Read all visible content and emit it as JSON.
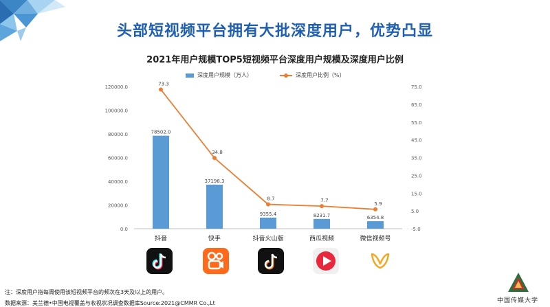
{
  "slide": {
    "headline": "头部短视频平台拥有大批深度用户，优势凸显",
    "footnote": "注：深度用户指每周使用该短视频平台的频次在3天及以上的用户。",
    "source": "数据来源：美兰德•中国电视覆盖与收视状况调查数据库Source:2021@CMMR Co.,Lt",
    "logo_text": "中国传媒大学"
  },
  "chart_data": {
    "type": "bar+line",
    "title": "2021年用户规模TOP5短视频平台深度用户规模及深度用户比例",
    "categories": [
      "抖音",
      "快手",
      "抖音火山版",
      "西瓜视频",
      "微信视频号"
    ],
    "series": [
      {
        "name": "深度用户规模（万人）",
        "type": "bar",
        "axis": "left",
        "color": "#5b9bd5",
        "values": [
          78502.0,
          37198.3,
          9355.4,
          8231.7,
          6354.8
        ],
        "labels": [
          "78502.0",
          "37198.3",
          "9355.4",
          "8231.7",
          "6354.8"
        ]
      },
      {
        "name": "深度用户比例（%）",
        "type": "line",
        "axis": "right",
        "color": "#ed7d31",
        "values": [
          73.3,
          34.8,
          8.7,
          7.7,
          5.9
        ],
        "labels": [
          "73.3",
          "34.8",
          "8.7",
          "7.7",
          "5.9"
        ]
      }
    ],
    "left_axis": {
      "ylim": [
        0,
        120000
      ],
      "ticks": [
        "0.0",
        "20000.0",
        "40000.0",
        "60000.0",
        "80000.0",
        "100000.0",
        "120000.0"
      ]
    },
    "right_axis": {
      "ylim": [
        -5,
        75
      ],
      "ticks": [
        "-5.0",
        "5.0",
        "15.0",
        "25.0",
        "35.0",
        "45.0",
        "55.0",
        "65.0",
        "75.0"
      ]
    },
    "legend_position": "top-center",
    "grid": false,
    "app_icons": [
      "douyin-icon",
      "kuaishou-icon",
      "huoshan-icon",
      "xigua-icon",
      "wechat-channels-icon"
    ]
  }
}
